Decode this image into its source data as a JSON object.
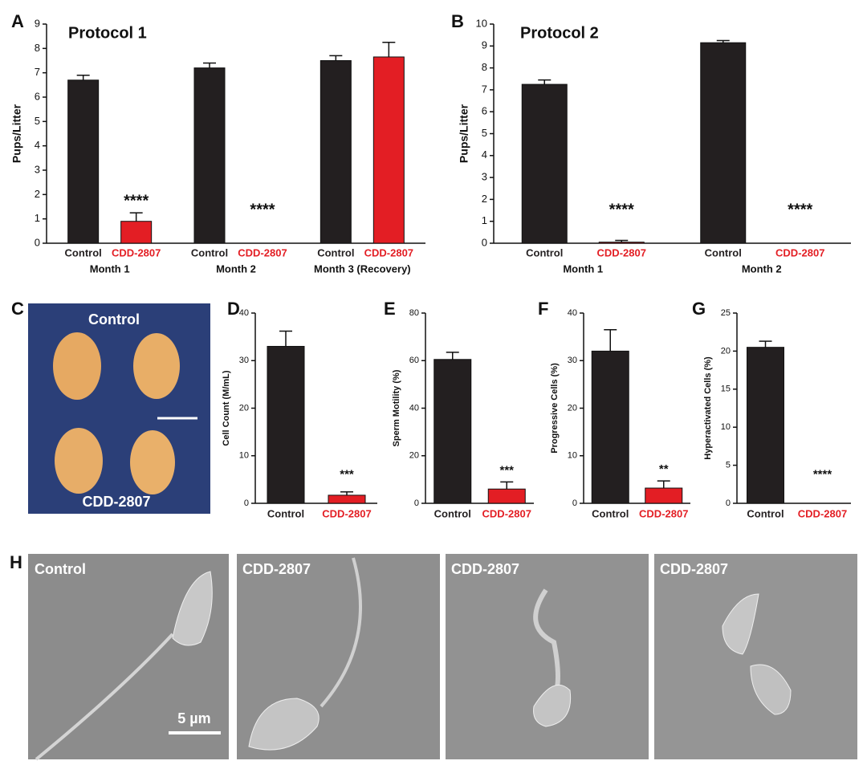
{
  "chart_data": [
    {
      "type": "bar",
      "panel": "A",
      "title": "Protocol 1",
      "y_label": "Pups/Litter",
      "categories": [
        "Month 1",
        "Month 2",
        "Month 3 (Recovery)"
      ],
      "series": [
        {
          "name": "Control",
          "color": "#231f20",
          "values": [
            6.7,
            7.2,
            7.5
          ],
          "errors": [
            0.2,
            0.2,
            0.2
          ],
          "significance": [
            null,
            null,
            null
          ]
        },
        {
          "name": "CDD-2807",
          "color": "#e31e24",
          "values": [
            0.9,
            0,
            7.65
          ],
          "errors": [
            0.35,
            null,
            0.6
          ],
          "significance": [
            "****",
            "****",
            null
          ]
        }
      ],
      "ylim": [
        0,
        9
      ],
      "yticks": [
        0,
        1,
        2,
        3,
        4,
        5,
        6,
        7,
        8,
        9
      ]
    },
    {
      "type": "bar",
      "panel": "B",
      "title": "Protocol 2",
      "y_label": "Pups/Litter",
      "categories": [
        "Month 1",
        "Month 2"
      ],
      "series": [
        {
          "name": "Control",
          "color": "#231f20",
          "values": [
            7.25,
            9.15
          ],
          "errors": [
            0.2,
            0.1
          ],
          "significance": [
            null,
            null
          ]
        },
        {
          "name": "CDD-2807",
          "color": "#e31e24",
          "values": [
            0.05,
            0
          ],
          "errors": [
            0.08,
            null
          ],
          "significance": [
            "****",
            "****"
          ]
        }
      ],
      "ylim": [
        0,
        10
      ],
      "yticks": [
        0,
        1,
        2,
        3,
        4,
        5,
        6,
        7,
        8,
        9,
        10
      ]
    },
    {
      "type": "bar",
      "panel": "D",
      "y_label": "Cell Count (M/mL)",
      "categories": [
        "Control",
        "CDD-2807"
      ],
      "colors": [
        "#231f20",
        "#e31e24"
      ],
      "values": [
        33,
        1.7
      ],
      "errors": [
        3.2,
        0.7
      ],
      "significance": [
        null,
        "***"
      ],
      "ylim": [
        0,
        40
      ],
      "yticks": [
        0,
        10,
        20,
        30,
        40
      ]
    },
    {
      "type": "bar",
      "panel": "E",
      "y_label": "Sperm Motility (%)",
      "categories": [
        "Control",
        "CDD-2807"
      ],
      "colors": [
        "#231f20",
        "#e31e24"
      ],
      "values": [
        60.5,
        6
      ],
      "errors": [
        3,
        3
      ],
      "significance": [
        null,
        "***"
      ],
      "ylim": [
        0,
        80
      ],
      "yticks": [
        0,
        20,
        40,
        60,
        80
      ]
    },
    {
      "type": "bar",
      "panel": "F",
      "y_label": "Progressive Cells (%)",
      "categories": [
        "Control",
        "CDD-2807"
      ],
      "colors": [
        "#231f20",
        "#e31e24"
      ],
      "values": [
        32,
        3.2
      ],
      "errors": [
        4.5,
        1.5
      ],
      "significance": [
        null,
        "**"
      ],
      "ylim": [
        0,
        40
      ],
      "yticks": [
        0,
        10,
        20,
        30,
        40
      ]
    },
    {
      "type": "bar",
      "panel": "G",
      "y_label": "Hyperactivated Cells (%)",
      "categories": [
        "Control",
        "CDD-2807"
      ],
      "colors": [
        "#231f20",
        "#e31e24"
      ],
      "values": [
        20.5,
        0
      ],
      "errors": [
        0.8,
        null
      ],
      "significance": [
        null,
        "****"
      ],
      "ylim": [
        0,
        25
      ],
      "yticks": [
        0,
        5,
        10,
        15,
        20,
        25
      ]
    }
  ],
  "panel_c": {
    "letter": "C",
    "labels": [
      "Control",
      "CDD-2807"
    ]
  },
  "panel_h": {
    "letter": "H",
    "labels": [
      "Control",
      "CDD-2807",
      "CDD-2807",
      "CDD-2807"
    ],
    "scale_bar": "5 µm"
  }
}
